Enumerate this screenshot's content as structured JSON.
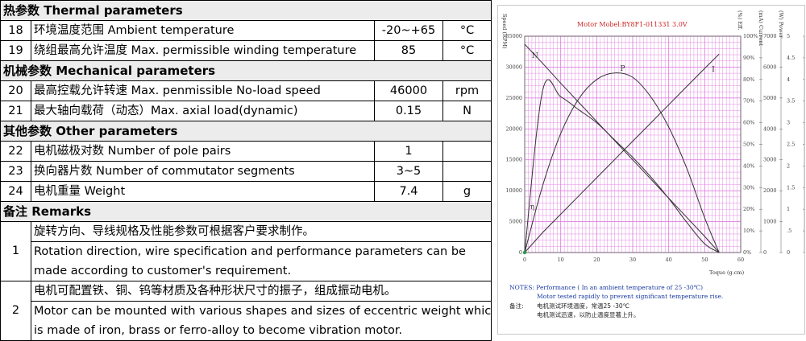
{
  "thermal": {
    "header": "热参数  Thermal parameters",
    "rows": [
      {
        "no": "18",
        "name": "环境温度范围  Ambient temperature",
        "value": "-20~+65",
        "unit": "°C"
      },
      {
        "no": "19",
        "name": "绕组最高允许温度  Max. permissible winding temperature",
        "value": "85",
        "unit": "°C"
      }
    ]
  },
  "mechanical": {
    "header": "机械参数 Mechanical parameters",
    "rows": [
      {
        "no": "20",
        "name": "最高控载允许转速 Max. penmissible No-load speed",
        "value": "46000",
        "unit": "rpm"
      },
      {
        "no": "21",
        "name": "最大轴向载荷（动态）Max. axial load(dynamic)",
        "value": "0.15",
        "unit": "N"
      }
    ]
  },
  "other": {
    "header": "其他参数  Other parameters",
    "rows": [
      {
        "no": "22",
        "name": "电机磁极对数  Number of pole pairs",
        "value": "1",
        "unit": ""
      },
      {
        "no": "23",
        "name": "换向器片数  Number of commutator segments",
        "value": "3~5",
        "unit": ""
      },
      {
        "no": "24",
        "name": "电机重量 Weight",
        "value": "7.4",
        "unit": "g"
      }
    ]
  },
  "remarks": {
    "header": "备注 Remarks",
    "items": [
      {
        "no": "1",
        "lines": [
          "旋转方向、导线规格及性能参数可根据客户要求制作。",
          "Rotation direction, wire specification and performance parameters can be",
          "made according to customer's requirement."
        ]
      },
      {
        "no": "2",
        "lines": [
          "电机可配置铁、铜、钨等材质及各种形状尺寸的振子，组成振动电机。",
          "Motor can be mounted with various shapes and sizes of eccentric weight which",
          "is made of iron, brass or ferro-alloy to become vibration motor."
        ]
      }
    ]
  },
  "chart": {
    "caption": "Motor Mobel:BY8F1-011331   3.0V",
    "left_axis_title": "Speed (RPM)",
    "right_axis_titles": [
      "(%) Eff.",
      "(mA) Current",
      "(W) Power"
    ],
    "x_axis_title": "Toque  (g.cm)",
    "curve_labels": {
      "speed": "N",
      "power": "P",
      "current": "I",
      "efficiency": "η"
    },
    "notes_en": [
      "NOTES:  Performance ( In an ambient temperature of 25 -30℃)",
      "Motor tested rapidly to prevent significant temperature rise."
    ],
    "notes_cn_label": "备注:",
    "notes_cn": [
      "电机测试环境温度，常温25 -30℃",
      "电机测试迅速，以防止温度显著上升。"
    ],
    "colors": {
      "grid": "#e080e0",
      "curve": "#333333",
      "caption": "#cc2222",
      "notes": "#1a3aa0"
    }
  },
  "chart_data": {
    "type": "line",
    "x": [
      0,
      5,
      10,
      15,
      20,
      25,
      30,
      35,
      40,
      45,
      50,
      54
    ],
    "xlim": [
      0,
      60
    ],
    "xticks": [
      "0",
      "10",
      "20",
      "30",
      "40",
      "50",
      "60"
    ],
    "ylim_speed": [
      0,
      35000
    ],
    "yticks_speed": [
      "0",
      "5000",
      "10000",
      "15000",
      "20000",
      "25000",
      "30000",
      "35000"
    ],
    "yticks_eff": [
      "0%",
      "10%",
      "20%",
      "30%",
      "40%",
      "50%",
      "60%",
      "70%",
      "80%",
      "90%",
      "100%"
    ],
    "yticks_current": [
      "0",
      "1000",
      "2000",
      "3000",
      "4000",
      "5000",
      "6000",
      "7000"
    ],
    "yticks_power": [
      "0",
      ".5",
      "1",
      "1.5",
      "2",
      "2.5",
      "3",
      "3.5",
      "4",
      "4.5",
      "5"
    ],
    "series": [
      {
        "name": "N",
        "axis": "speed",
        "values": [
          33700,
          30600,
          27400,
          24300,
          21200,
          18100,
          15000,
          11900,
          8800,
          5700,
          2600,
          0
        ]
      },
      {
        "name": "P",
        "axis": "power",
        "values": [
          0,
          1.55,
          2.75,
          3.55,
          4.0,
          4.15,
          4.05,
          3.6,
          2.9,
          1.95,
          0.8,
          0
        ]
      },
      {
        "name": "I",
        "axis": "current",
        "values": [
          0,
          650,
          1240,
          1830,
          2420,
          3010,
          3600,
          4190,
          4780,
          5370,
          5960,
          6420
        ]
      },
      {
        "name": "η",
        "axis": "eff",
        "values": [
          0,
          75,
          72,
          66,
          60,
          52,
          44,
          35,
          25,
          14,
          4,
          0
        ]
      }
    ]
  }
}
